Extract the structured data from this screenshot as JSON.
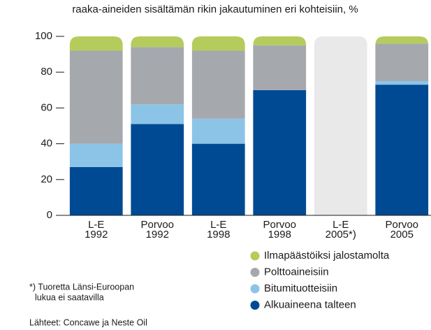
{
  "chart_data": {
    "type": "stacked_bar",
    "title": "raaka-aineiden sisältämän rikin jakautuminen eri kohteisiin, %",
    "categories": [
      [
        "L-E",
        "1992"
      ],
      [
        "Porvoo",
        "1992"
      ],
      [
        "L-E",
        "1998"
      ],
      [
        "Porvoo",
        "1998"
      ],
      [
        "L-E",
        "2005*)"
      ],
      [
        "Porvoo",
        "2005"
      ]
    ],
    "series": [
      {
        "name": "Alkuaineena talteen",
        "color": "#004a93",
        "values": [
          27,
          51,
          40,
          70,
          null,
          73
        ]
      },
      {
        "name": "Bitumituotteisiin",
        "color": "#8cc4e8",
        "values": [
          13,
          11,
          14,
          0,
          null,
          2
        ]
      },
      {
        "name": "Polttoaineisiin",
        "color": "#a5a9ad",
        "values": [
          52,
          32,
          38,
          25,
          null,
          21
        ]
      },
      {
        "name": "Ilmapäästöiksi jalostamolta",
        "color": "#b5cc5c",
        "values": [
          8,
          6,
          8,
          5,
          null,
          4
        ]
      }
    ],
    "placeholder_color": "#e9e9e9",
    "ylim": [
      0,
      100
    ],
    "yticks": [
      0,
      20,
      40,
      60,
      80,
      100
    ],
    "footnote": [
      "*) Tuoretta Länsi-Euroopan",
      "lukua ei saatavilla"
    ],
    "source": "Lähteet: Concawe ja Neste Oil"
  }
}
